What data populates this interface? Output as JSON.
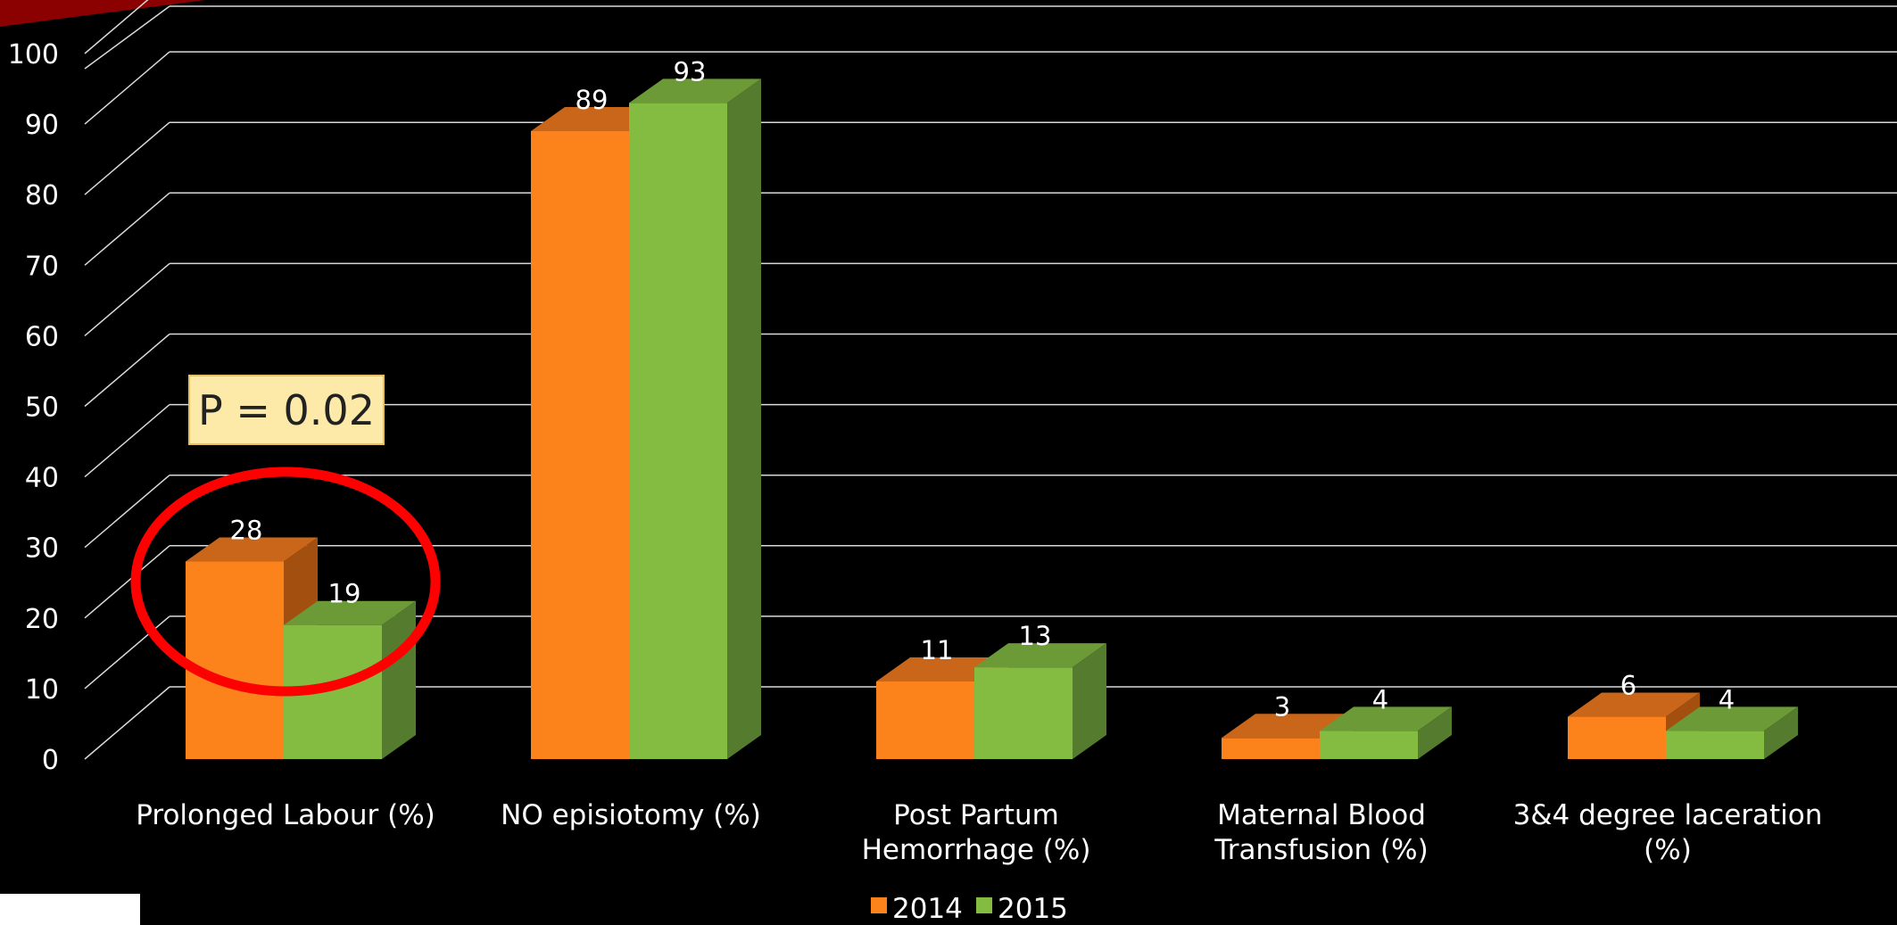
{
  "chart_data": {
    "type": "bar",
    "categories": [
      [
        "Prolonged Labour (%)"
      ],
      [
        "NO episiotomy (%)"
      ],
      [
        "Post Partum",
        "Hemorrhage (%)"
      ],
      [
        "Maternal Blood",
        "Transfusion (%)"
      ],
      [
        "3&4 degree laceration",
        "(%)"
      ]
    ],
    "series": [
      {
        "name": "2014",
        "values": [
          28,
          89,
          11,
          3,
          6
        ],
        "color": "#fc821c",
        "top_color": "#c9661a",
        "side_color": "#a34f10"
      },
      {
        "name": "2015",
        "values": [
          19,
          93,
          13,
          4,
          4
        ],
        "color": "#84bc41",
        "top_color": "#6b9a36",
        "side_color": "#557c2e"
      }
    ],
    "ylim": [
      0,
      100
    ],
    "yticks": [
      0,
      10,
      20,
      30,
      40,
      50,
      60,
      70,
      80,
      90,
      100
    ],
    "grid": true,
    "legend_position": "bottom",
    "annotation": {
      "text": "P = 0.02",
      "category_index": 0,
      "box_fill": "#fdeaa8",
      "box_border": "#e8c060",
      "circle_color": "#ff0000"
    }
  },
  "colors": {
    "background": "#000000",
    "gridline": "#d9d9d9",
    "text": "#ffffff",
    "corner_accent": "#8b0000"
  }
}
